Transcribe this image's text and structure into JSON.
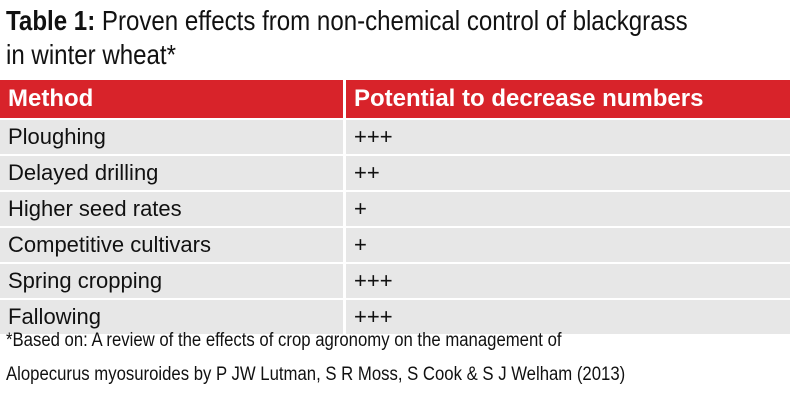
{
  "title": {
    "label": "Table 1:",
    "line1": "Proven effects from non-chemical control of blackgrass",
    "line2": "in winter wheat*"
  },
  "table": {
    "header": [
      "Method",
      "Potential to decrease numbers"
    ],
    "rows": [
      [
        "Ploughing",
        "+++"
      ],
      [
        "Delayed drilling",
        "++"
      ],
      [
        "Higher seed rates",
        "+"
      ],
      [
        "Competitive cultivars",
        "+"
      ],
      [
        "Spring cropping",
        "+++"
      ],
      [
        "Fallowing",
        "+++"
      ]
    ]
  },
  "footnote": {
    "line1": "*Based on: A review of the effects of crop agronomy on the management of",
    "line2": "Alopecurus myosuroides by P JW Lutman, S R Moss, S Cook & S J Welham (2013)"
  }
}
